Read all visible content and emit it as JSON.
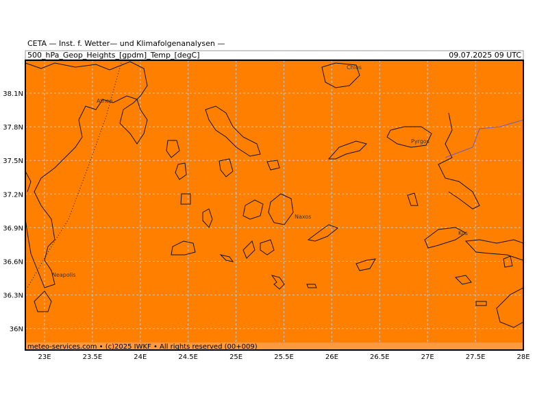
{
  "header": {
    "source": "CETA — Inst. f. Wetter— und Klimafolgenanalysen —",
    "title": "500_hPa_Geop_Heights_[gpdm]_Temp_[degC]",
    "timestamp": "09.07.2025 09 UTC"
  },
  "footer": "meteo-services.com • (c)2025 IWKF • All rights reserved (00+009)",
  "lat_labels": [
    "38.1N",
    "37.8N",
    "37.5N",
    "37.2N",
    "36.9N",
    "36.6N",
    "36.3N",
    "36N"
  ],
  "lon_labels": [
    "23E",
    "23.5E",
    "24E",
    "24.5E",
    "25E",
    "25.5E",
    "26E",
    "26.5E",
    "27E",
    "27.5E",
    "28E"
  ],
  "places": [
    "Athen",
    "Chios",
    "Pyrgos",
    "Naxos",
    "Kos",
    "Neapolis"
  ]
}
